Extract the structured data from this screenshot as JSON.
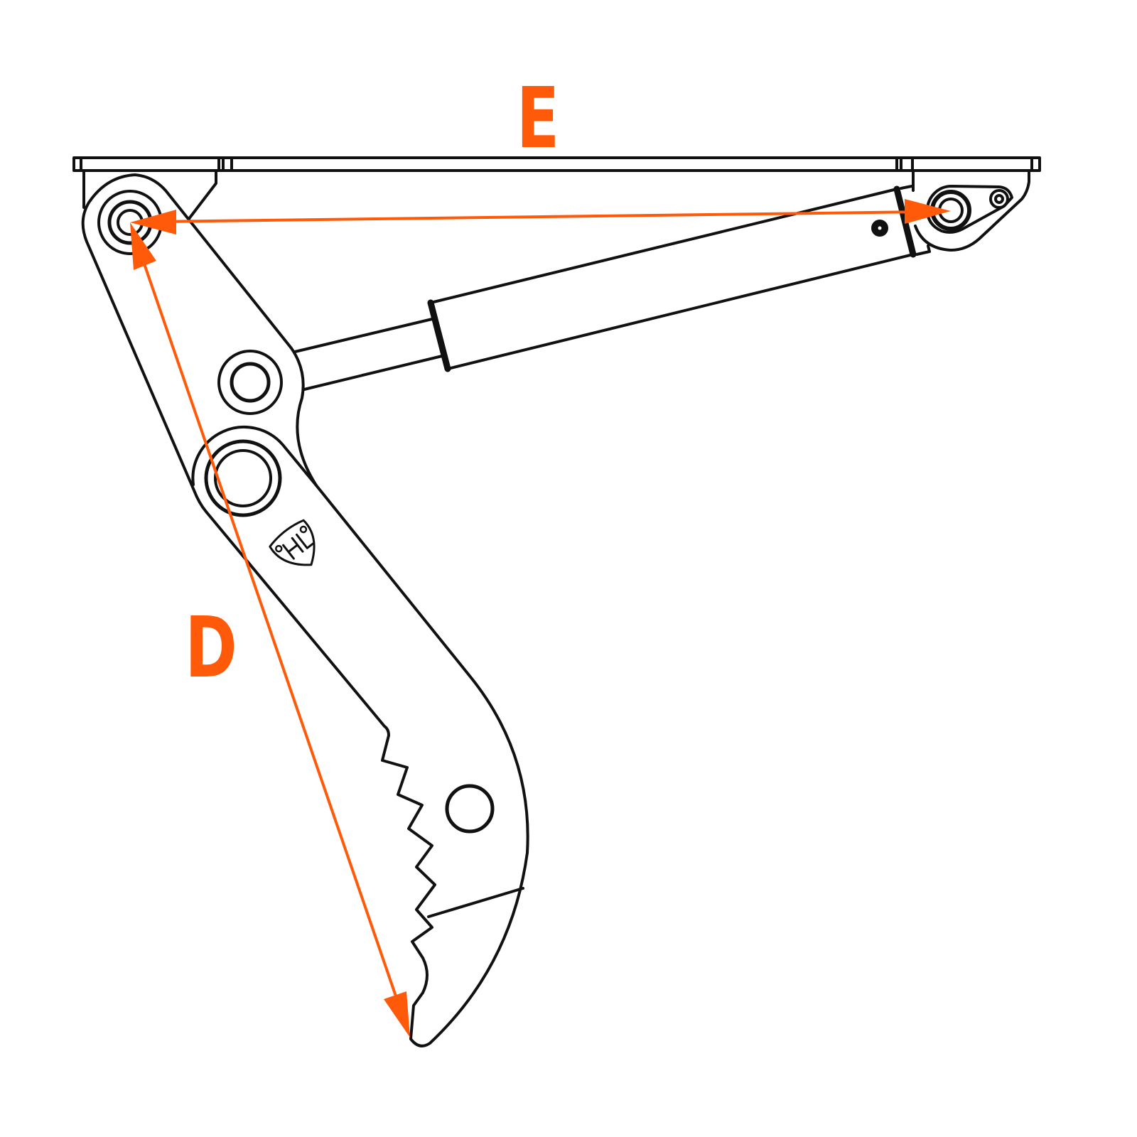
{
  "diagram": {
    "dimensions": [
      {
        "label": "E",
        "description_text": ""
      },
      {
        "label": "D",
        "description_text": ""
      }
    ],
    "colors": {
      "accent": "#FF5A0A",
      "line": "#111111"
    },
    "logo": {
      "icon": "shield-logo-icon",
      "text": "HL"
    }
  }
}
